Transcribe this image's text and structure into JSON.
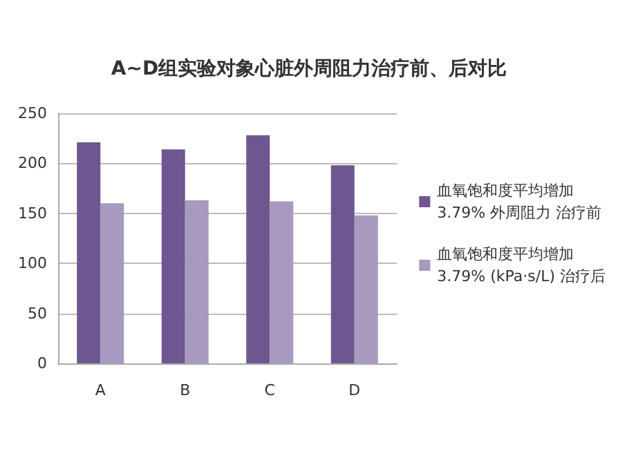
{
  "chart_data": {
    "type": "bar",
    "title": "A~D组实验对象心脏外周阻力治疗前、后对比",
    "categories": [
      "A",
      "B",
      "C",
      "D"
    ],
    "series": [
      {
        "name": "血氧饱和度平均增加\n3.79% 外周阻力 治疗前",
        "color": "#6e5790",
        "values": [
          221,
          214,
          228,
          198
        ]
      },
      {
        "name": "血氧饱和度平均增加\n3.79% (kPa·s/L) 治疗后",
        "color": "#a899bf",
        "values": [
          160,
          163,
          162,
          148
        ]
      }
    ],
    "ylim": [
      0,
      250
    ],
    "yticks": [
      0,
      50,
      100,
      150,
      200,
      250
    ],
    "grid": "y",
    "legend": "right"
  }
}
